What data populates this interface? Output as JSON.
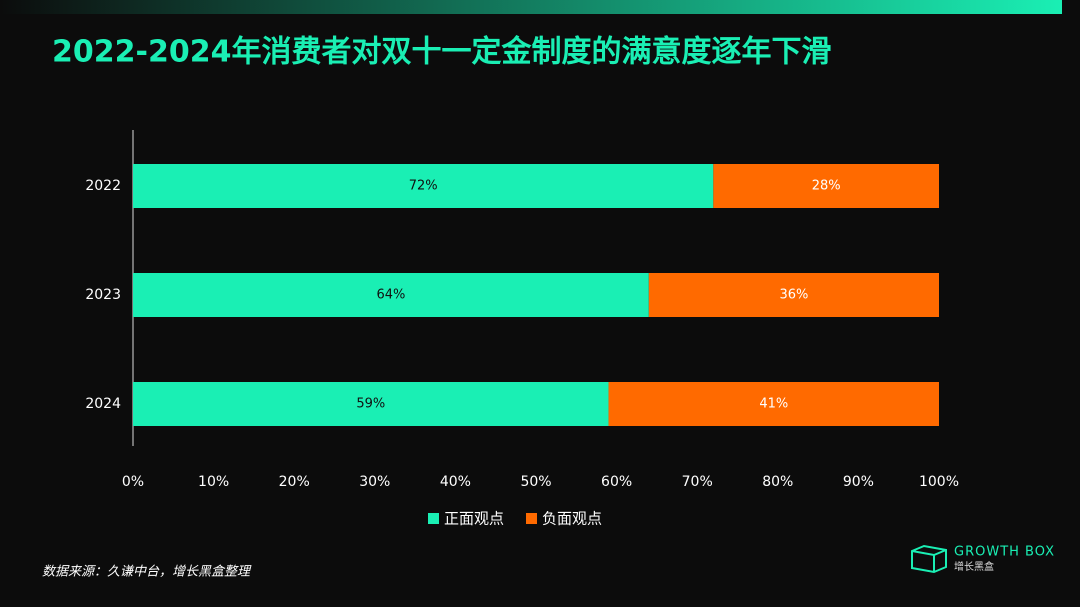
{
  "chart_data": {
    "type": "stacked-barh",
    "title": "2022-2024年消费者对双十一定金制度的满意度逐年下滑",
    "categories": [
      "2022",
      "2023",
      "2024"
    ],
    "series": [
      {
        "name": "正面观点",
        "color": "#1aefb4",
        "values": [
          72,
          64,
          59
        ],
        "value_labels": [
          "72%",
          "64%",
          "59%"
        ]
      },
      {
        "name": "负面观点",
        "color": "#ff6a00",
        "values": [
          28,
          36,
          41
        ],
        "value_labels": [
          "28%",
          "36%",
          "41%"
        ]
      }
    ],
    "xlim": [
      0,
      100
    ],
    "xticks": [
      {
        "value": 0,
        "label": "0%"
      },
      {
        "value": 10,
        "label": "10%"
      },
      {
        "value": 20,
        "label": "20%"
      },
      {
        "value": 30,
        "label": "30%"
      },
      {
        "value": 40,
        "label": "40%"
      },
      {
        "value": 50,
        "label": "50%"
      },
      {
        "value": 60,
        "label": "60%"
      },
      {
        "value": 70,
        "label": "70%"
      },
      {
        "value": 80,
        "label": "80%"
      },
      {
        "value": 90,
        "label": "90%"
      },
      {
        "value": 100,
        "label": "100%"
      }
    ],
    "legend": "bottom",
    "source": "数据来源：久谦中台，增长黑盒整理"
  },
  "brand": {
    "name": "GROWTH BOX",
    "name_cn": "增长黑盒"
  }
}
